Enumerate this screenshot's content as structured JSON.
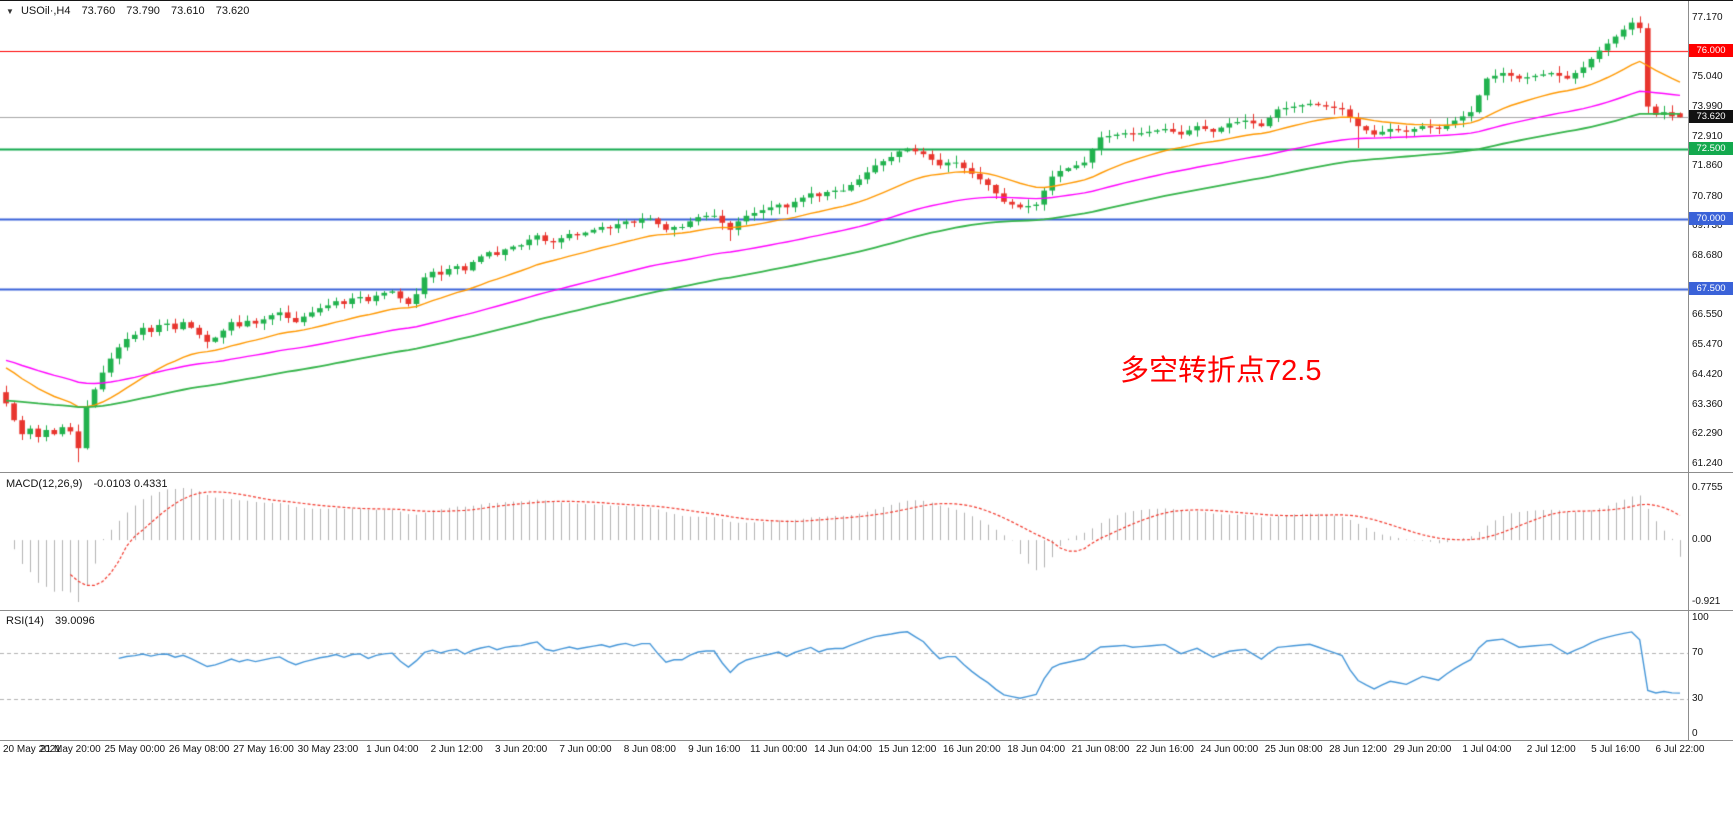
{
  "chrome": {
    "legend": {
      "marker": "▼",
      "symbol_period": "USOil·,H4",
      "open": "73.760",
      "high": "73.790",
      "low": "73.610",
      "close": "73.620"
    },
    "macd_legend": {
      "name": "MACD(12,26,9)",
      "values": "-0.0103 0.4331"
    },
    "rsi_legend": {
      "name": "RSI(14)",
      "values": "39.0096"
    }
  },
  "annotation": {
    "text": "多空转折点72.5",
    "color": "#ff0000"
  },
  "chart_data": {
    "type": "candlestick",
    "symbol": "USOil",
    "timeframe": "H4",
    "current_ohlc": {
      "open": 73.76,
      "high": 73.79,
      "low": 73.61,
      "close": 73.62
    },
    "ylim": [
      60.95,
      77.77
    ],
    "y_ticks": [
      {
        "text": "77.170",
        "price": 77.17
      },
      {
        "text": "75.040",
        "price": 75.04
      },
      {
        "text": "73.990",
        "price": 73.99
      },
      {
        "text": "72.910",
        "price": 72.91
      },
      {
        "text": "71.860",
        "price": 71.86
      },
      {
        "text": "70.780",
        "price": 70.78
      },
      {
        "text": "69.730",
        "price": 69.73
      },
      {
        "text": "68.680",
        "price": 68.68
      },
      {
        "text": "66.550",
        "price": 66.55
      },
      {
        "text": "65.470",
        "price": 65.47
      },
      {
        "text": "64.420",
        "price": 64.42
      },
      {
        "text": "63.360",
        "price": 63.36
      },
      {
        "text": "62.290",
        "price": 62.29
      },
      {
        "text": "61.240",
        "price": 61.24
      }
    ],
    "price_badges": [
      {
        "text": "76.000",
        "price": 76.0,
        "bg": "#ff0000"
      },
      {
        "text": "73.620",
        "price": 73.62,
        "bg": "#111111"
      },
      {
        "text": "72.500",
        "price": 72.5,
        "bg": "#13a94e"
      },
      {
        "text": "70.000",
        "price": 70.0,
        "bg": "#3a62d8"
      },
      {
        "text": "67.500",
        "price": 67.5,
        "bg": "#3a62d8"
      }
    ],
    "horizontal_levels": [
      {
        "price": 76.0,
        "color": "#ff0000",
        "width": 1
      },
      {
        "price": 72.5,
        "color": "#13a94e",
        "width": 2
      },
      {
        "price": 70.0,
        "color": "#3a62d8",
        "width": 2
      },
      {
        "price": 67.5,
        "color": "#3a62d8",
        "width": 2
      },
      {
        "price": 73.62,
        "color": "#a6a6a6",
        "width": 1
      }
    ],
    "x_tick_labels": [
      "20 May 2021",
      "21 May 20:00",
      "25 May 00:00",
      "26 May 08:00",
      "27 May 16:00",
      "30 May 23:00",
      "1 Jun 04:00",
      "2 Jun 12:00",
      "3 Jun 20:00",
      "7 Jun 00:00",
      "8 Jun 08:00",
      "9 Jun 16:00",
      "11 Jun 00:00",
      "14 Jun 04:00",
      "15 Jun 12:00",
      "16 Jun 20:00",
      "18 Jun 04:00",
      "21 Jun 08:00",
      "22 Jun 16:00",
      "24 Jun 00:00",
      "25 Jun 08:00",
      "28 Jun 12:00",
      "29 Jun 20:00",
      "1 Jul 04:00",
      "2 Jul 12:00",
      "5 Jul 16:00",
      "6 Jul 22:00"
    ],
    "bars_per_tick": 8,
    "first_open": 63.8,
    "closes": [
      63.4,
      62.8,
      62.3,
      62.5,
      62.2,
      62.45,
      62.3,
      62.55,
      62.4,
      61.8,
      63.3,
      63.9,
      64.5,
      65.0,
      65.4,
      65.7,
      65.85,
      66.1,
      65.95,
      66.2,
      66.25,
      66.05,
      66.3,
      66.1,
      65.85,
      65.6,
      65.75,
      66.0,
      66.3,
      66.15,
      66.35,
      66.25,
      66.4,
      66.55,
      66.65,
      66.45,
      66.3,
      66.5,
      66.65,
      66.8,
      66.9,
      67.05,
      66.95,
      67.15,
      67.2,
      67.05,
      67.25,
      67.35,
      67.4,
      67.15,
      66.95,
      67.3,
      67.9,
      68.1,
      68.0,
      68.2,
      68.3,
      68.15,
      68.45,
      68.65,
      68.8,
      68.7,
      68.9,
      69.0,
      69.05,
      69.25,
      69.4,
      69.2,
      69.15,
      69.3,
      69.45,
      69.4,
      69.5,
      69.6,
      69.7,
      69.65,
      69.8,
      69.9,
      69.85,
      70.0,
      70.0,
      69.8,
      69.6,
      69.7,
      69.7,
      69.9,
      70.05,
      70.1,
      70.1,
      69.85,
      69.6,
      69.9,
      70.1,
      70.2,
      70.3,
      70.4,
      70.5,
      70.4,
      70.6,
      70.75,
      70.9,
      70.8,
      70.95,
      71.0,
      71.0,
      71.2,
      71.4,
      71.65,
      71.9,
      72.05,
      72.2,
      72.4,
      72.5,
      72.4,
      72.3,
      72.1,
      71.9,
      72.0,
      72.0,
      71.8,
      71.6,
      71.4,
      71.2,
      70.9,
      70.6,
      70.5,
      70.4,
      70.45,
      70.5,
      71.0,
      71.5,
      71.7,
      71.8,
      71.9,
      72.0,
      72.45,
      72.9,
      72.95,
      73.0,
      73.05,
      73.0,
      73.05,
      73.1,
      73.15,
      73.2,
      73.1,
      73.0,
      73.15,
      73.3,
      73.2,
      73.1,
      73.25,
      73.4,
      73.45,
      73.5,
      73.4,
      73.3,
      73.6,
      73.9,
      73.95,
      74.0,
      74.05,
      74.1,
      74.05,
      74.0,
      73.95,
      73.9,
      73.6,
      73.3,
      73.15,
      73.0,
      73.1,
      73.2,
      73.15,
      73.1,
      73.2,
      73.3,
      73.25,
      73.2,
      73.35,
      73.5,
      73.65,
      73.8,
      74.4,
      75.0,
      75.1,
      75.2,
      75.1,
      75.0,
      75.05,
      75.1,
      75.15,
      75.2,
      75.1,
      75.0,
      75.2,
      75.4,
      75.7,
      76.0,
      76.25,
      76.5,
      76.75,
      77.0,
      76.8,
      74.0,
      73.7,
      73.8,
      73.65,
      73.62
    ],
    "forced_highs": [
      [
        202,
        77.17
      ]
    ],
    "forced_lows": [
      [
        9,
        61.3
      ],
      [
        90,
        69.2
      ],
      [
        168,
        72.52
      ]
    ],
    "candle_up_color": "#21b24e",
    "candle_down_color": "#e8352e",
    "moving_averages": [
      {
        "period": 20,
        "seed": 64.8,
        "color": "#ff9800",
        "width": 1.4
      },
      {
        "period": 50,
        "seed": 65.0,
        "color": "#ff00ff",
        "width": 1.4
      },
      {
        "period": 80,
        "seed": 63.5,
        "color": "#35b44a",
        "width": 1.8
      }
    ],
    "macd": {
      "label": "MACD(12,26,9)",
      "fast": 12,
      "slow": 26,
      "signal": 9,
      "current_macd": -0.0103,
      "current_signal": 0.4331,
      "ymax": 0.7755,
      "ymin": -0.921,
      "y_ticks": [
        {
          "text": "0.7755",
          "value": 0.7755
        },
        {
          "text": "0.00",
          "value": 0
        },
        {
          "text": "-0.921",
          "value": -0.921
        }
      ],
      "histogram_color": "#b3b3b3",
      "signal_color": "#f23a2e"
    },
    "rsi": {
      "label": "RSI(14)",
      "period": 14,
      "current": 39.0096,
      "ylim": [
        0,
        100
      ],
      "levels": [
        70,
        30
      ],
      "y_ticks": [
        {
          "text": "100",
          "value": 100
        },
        {
          "text": "70",
          "value": 70
        },
        {
          "text": "30",
          "value": 30
        },
        {
          "text": "0",
          "value": 0
        }
      ],
      "line_color": "#4596d8"
    }
  }
}
